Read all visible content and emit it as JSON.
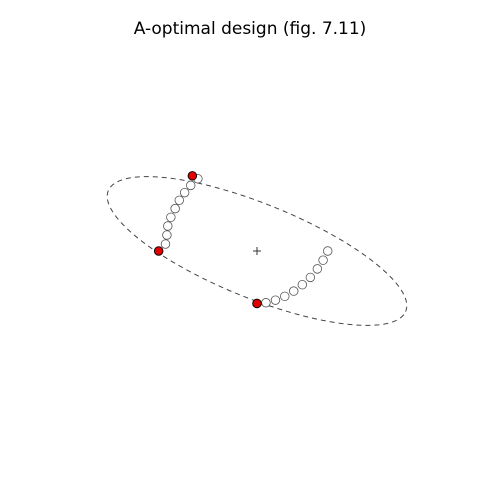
{
  "chart_data": {
    "type": "scatter",
    "title": "A-optimal design (fig. 7.11)",
    "xlabel": "",
    "ylabel": "",
    "xlim": [
      -1.1,
      1.1
    ],
    "ylim": [
      -1.1,
      1.1
    ],
    "grid": false,
    "axes_visible": false,
    "legend": "none",
    "center": [
      0,
      0
    ],
    "ellipse": {
      "center": [
        0,
        0
      ],
      "semi_axis_major": 0.9,
      "semi_axis_minor": 0.27,
      "angle_deg": -22.8
    },
    "series": [
      {
        "role": "candidate-points",
        "marker": "open-circle",
        "x": [
          0.395,
          0.369,
          0.337,
          0.298,
          0.253,
          0.205,
          0.155,
          0.103,
          0.05,
          0.0,
          -0.511,
          -0.503,
          -0.498,
          -0.481,
          -0.457,
          -0.434,
          -0.404,
          -0.37,
          -0.33
        ],
        "y": [
          0.0,
          -0.053,
          -0.103,
          -0.152,
          -0.194,
          -0.231,
          -0.261,
          -0.283,
          -0.298,
          -0.302,
          0.04,
          0.092,
          0.144,
          0.194,
          0.244,
          0.292,
          0.336,
          0.378,
          0.416
        ]
      },
      {
        "role": "design-points",
        "marker": "filled-circle",
        "x": [
          -0.549,
          0.0,
          -0.361
        ],
        "y": [
          0.0,
          -0.302,
          0.433
        ]
      }
    ],
    "colors": {
      "candidate_fill": "#ffffff",
      "design_fill": "#e00000",
      "stroke": "#000000",
      "ellipse": "#444444"
    }
  }
}
